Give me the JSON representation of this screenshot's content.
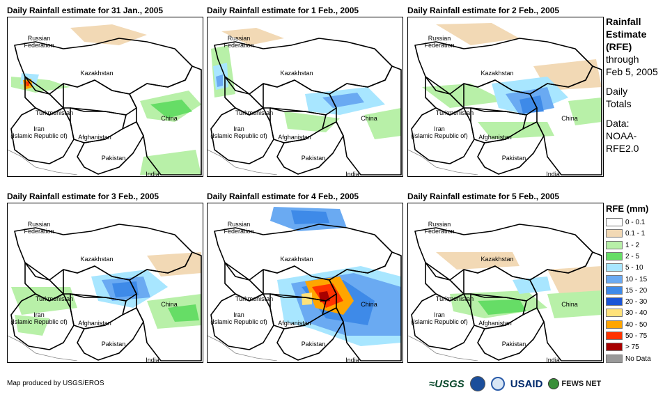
{
  "panels": [
    {
      "title": "Daily Rainfall estimate for 31 Jan., 2005"
    },
    {
      "title": "Daily Rainfall estimate for 1 Feb., 2005"
    },
    {
      "title": "Daily Rainfall estimate for 2 Feb., 2005"
    },
    {
      "title": "Daily Rainfall estimate for 3 Feb., 2005"
    },
    {
      "title": "Daily Rainfall estimate for 4 Feb., 2005"
    },
    {
      "title": "Daily Rainfall estimate for 5 Feb., 2005"
    }
  ],
  "map_labels": {
    "russia_1": "Russian",
    "russia_2": "Federation",
    "kazakhstan": "Kazakhstan",
    "turkmenistan": "Turkmenistan",
    "iran_1": "Iran",
    "iran_2": "(Islamic Republic of)",
    "afghanistan": "Afghanistan",
    "pakistan": "Pakistan",
    "china": "China",
    "india": "India"
  },
  "sidebar": {
    "title_1": "Rainfall",
    "title_2": "Estimate",
    "title_3": "(RFE)",
    "through_1": "through",
    "through_2": "Feb 5, 2005",
    "totals_1": "Daily",
    "totals_2": "Totals",
    "data_1": "Data:",
    "data_2": "NOAA-",
    "data_3": "RFE2.0"
  },
  "legend": {
    "title": "RFE (mm)",
    "items": [
      {
        "label": "0 - 0.1",
        "color": "#ffffff"
      },
      {
        "label": "0.1 - 1",
        "color": "#f2d9b5"
      },
      {
        "label": "1 - 2",
        "color": "#b8f0a8"
      },
      {
        "label": "2 - 5",
        "color": "#66dd66"
      },
      {
        "label": "5 - 10",
        "color": "#a8e6ff"
      },
      {
        "label": "10 - 15",
        "color": "#6aaaf2"
      },
      {
        "label": "15 - 20",
        "color": "#3e8ae8"
      },
      {
        "label": "20 - 30",
        "color": "#1a55d6"
      },
      {
        "label": "30 - 40",
        "color": "#ffe27a"
      },
      {
        "label": "40 - 50",
        "color": "#ffa500"
      },
      {
        "label": "50 - 75",
        "color": "#ff3300"
      },
      {
        "label": "> 75",
        "color": "#a80000"
      },
      {
        "label": "No Data",
        "color": "#999999"
      }
    ]
  },
  "footer": {
    "credit": "Map produced by USGS/EROS"
  },
  "logos": {
    "usgs": "≈USGS",
    "usaid": "USAID",
    "fews": "FEWS NET"
  }
}
